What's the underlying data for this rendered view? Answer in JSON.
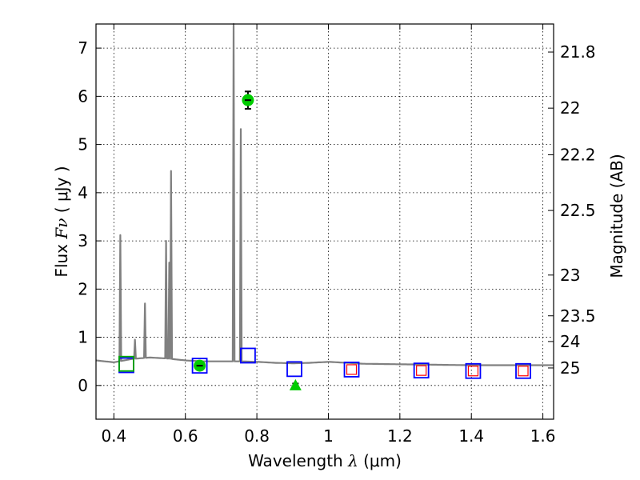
{
  "chart_data": {
    "type": "scatter",
    "xlabel": {
      "pre": "Wavelength  ",
      "sym": "λ",
      "post": " (μm)"
    },
    "ylabel": {
      "pre": "Flux  ",
      "sym": "Fν",
      "post": "  ( μJy )"
    },
    "y2label": "Magnitude (AB)",
    "xlim": [
      0.35,
      1.63
    ],
    "ylim": [
      -0.7,
      7.5
    ],
    "x_ticks": [
      0.4,
      0.6,
      0.8,
      1.0,
      1.2,
      1.4,
      1.6
    ],
    "x_tick_labels": [
      "0.4",
      "0.6",
      "0.8",
      "1",
      "1.2",
      "1.4",
      "1.6"
    ],
    "y_ticks": [
      0,
      1,
      2,
      3,
      4,
      5,
      6,
      7
    ],
    "y_tick_labels": [
      "0",
      "1",
      "2",
      "3",
      "4",
      "5",
      "6",
      "7"
    ],
    "y2_ticks": [
      21.8,
      22,
      22.2,
      22.5,
      23,
      23.5,
      24,
      25
    ],
    "y2_tick_labels": [
      "21.8",
      "22",
      "22.2",
      "22.5",
      "23",
      "23.5",
      "24",
      "25"
    ],
    "grid": true,
    "model_spectrum": {
      "color": "#808080",
      "continuum": [
        [
          0.35,
          0.52
        ],
        [
          0.4,
          0.48
        ],
        [
          0.45,
          0.55
        ],
        [
          0.5,
          0.58
        ],
        [
          0.55,
          0.56
        ],
        [
          0.6,
          0.52
        ],
        [
          0.65,
          0.5
        ],
        [
          0.7,
          0.5
        ],
        [
          0.75,
          0.5
        ],
        [
          0.8,
          0.49
        ],
        [
          0.85,
          0.47
        ],
        [
          0.9,
          0.46
        ],
        [
          0.95,
          0.47
        ],
        [
          1.0,
          0.49
        ],
        [
          1.05,
          0.47
        ],
        [
          1.1,
          0.45
        ],
        [
          1.2,
          0.44
        ],
        [
          1.3,
          0.43
        ],
        [
          1.4,
          0.42
        ],
        [
          1.5,
          0.42
        ],
        [
          1.63,
          0.42
        ]
      ],
      "emission_lines": [
        {
          "x": 0.418,
          "peak": 3.12
        },
        {
          "x": 0.459,
          "peak": 0.95
        },
        {
          "x": 0.487,
          "peak": 1.7
        },
        {
          "x": 0.546,
          "peak": 3.0
        },
        {
          "x": 0.555,
          "peak": 2.55
        },
        {
          "x": 0.56,
          "peak": 4.45
        },
        {
          "x": 0.735,
          "peak": 7.5
        },
        {
          "x": 0.755,
          "peak": 5.32
        }
      ]
    },
    "series": [
      {
        "marker": "square",
        "color": "#0000ff",
        "points": [
          [
            0.435,
            0.42
          ],
          [
            0.64,
            0.41
          ],
          [
            0.775,
            0.62
          ],
          [
            0.905,
            0.34
          ],
          [
            1.065,
            0.33
          ],
          [
            1.26,
            0.31
          ],
          [
            1.405,
            0.3
          ],
          [
            1.545,
            0.3
          ]
        ]
      },
      {
        "marker": "small-square",
        "color": "#ff0000",
        "points": [
          [
            1.065,
            0.33
          ],
          [
            1.26,
            0.31
          ],
          [
            1.405,
            0.3
          ],
          [
            1.545,
            0.3
          ]
        ]
      },
      {
        "marker": "square",
        "color": "#00aa00",
        "points": [
          [
            0.435,
            0.45
          ]
        ]
      },
      {
        "marker": "circle",
        "color": "#00cc00",
        "errorbars": true,
        "points": [
          [
            0.64,
            0.41,
            0.03
          ],
          [
            0.775,
            5.92,
            0.18
          ]
        ]
      },
      {
        "marker": "triangle",
        "color": "#00cc00",
        "errorbars": true,
        "points": [
          [
            0.908,
            0.0,
            0.04
          ]
        ]
      }
    ]
  }
}
